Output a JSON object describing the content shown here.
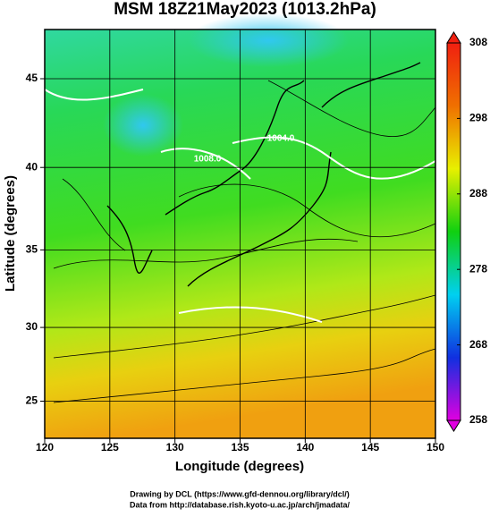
{
  "chart_data": {
    "type": "map",
    "title": "MSM 18Z21May2023 (1013.2hPa)",
    "xlabel": "Longitude (degrees)",
    "ylabel": "Latitude  (degrees)",
    "xlim": [
      120,
      150
    ],
    "xticks": [
      120,
      125,
      130,
      135,
      140,
      145,
      150
    ],
    "ylim": [
      22.4,
      47.6
    ],
    "yticks": [
      25,
      30,
      35,
      40,
      45
    ],
    "projection": "mercator",
    "grid": true,
    "colorbar": {
      "lim": [
        258,
        308
      ],
      "ticks": [
        258,
        268,
        278,
        288,
        298,
        308
      ],
      "colors": [
        "#e000e0",
        "#1030e0",
        "#00d0f0",
        "#10d010",
        "#e8f000",
        "#f07000",
        "#f02010"
      ]
    },
    "contour_labels": [
      "1008.0",
      "1004.0"
    ],
    "credits": [
      "Drawing by DCL (https://www.gfd-dennou.org/library/dcl/)",
      "Data from http://database.rish.kyoto-u.ac.jp/arch/jmadata/"
    ]
  }
}
